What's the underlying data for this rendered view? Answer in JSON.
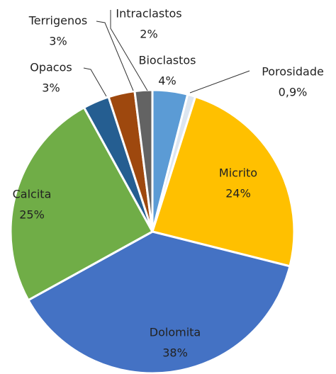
{
  "chart_data": {
    "type": "pie",
    "categories": [
      "Bioclastos",
      "Porosidade",
      "Micrito",
      "Dolomita",
      "Calcita",
      "Opacos",
      "Terrigenos",
      "Intraclastos"
    ],
    "values": [
      4,
      0.9,
      24,
      38,
      25,
      3,
      3,
      2
    ],
    "value_labels": [
      "4%",
      "0,9%",
      "24%",
      "38%",
      "25%",
      "3%",
      "3%",
      "2%"
    ],
    "colors": [
      "#5b9bd5",
      "#dde6f0",
      "#ffc000",
      "#4472c4",
      "#70ad47",
      "#255e91",
      "#9e480e",
      "#636363"
    ]
  }
}
